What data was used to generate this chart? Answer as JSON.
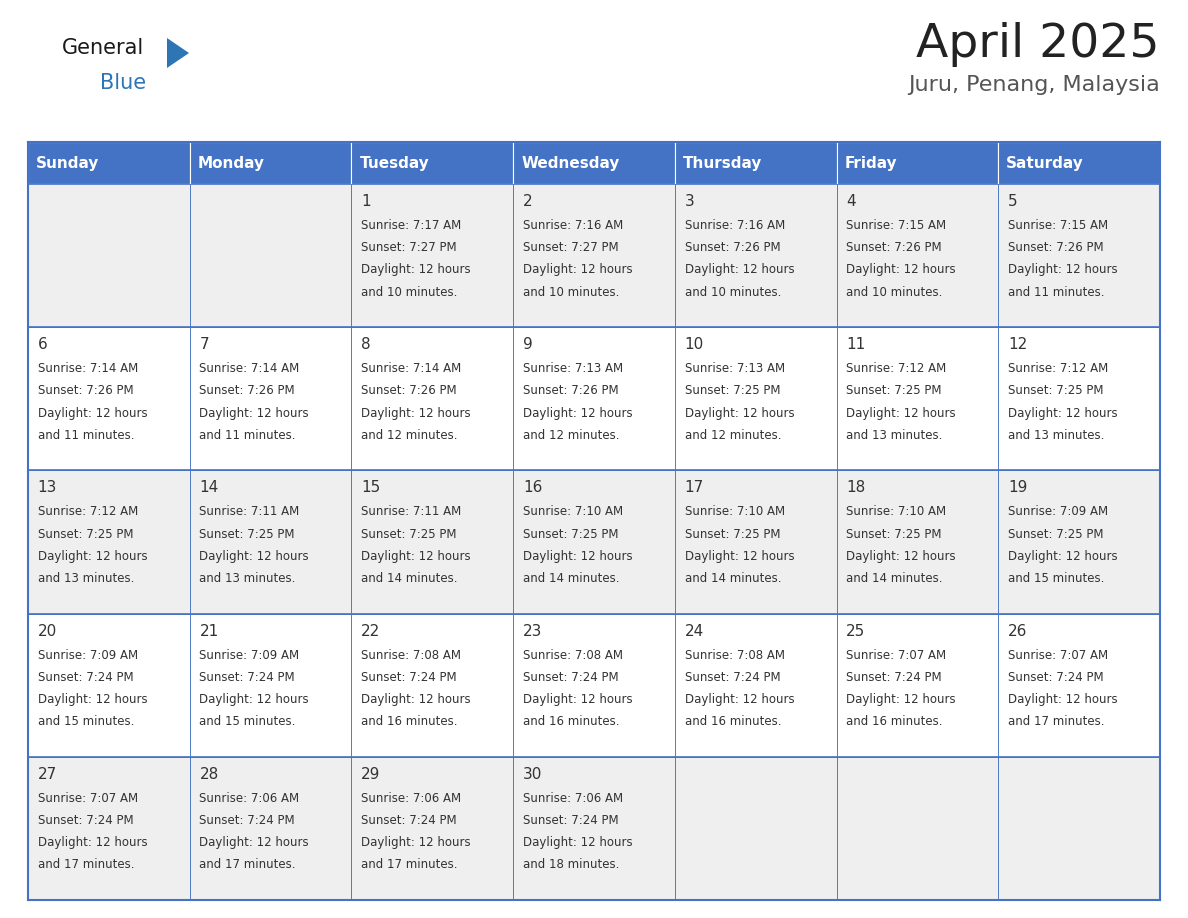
{
  "title": "April 2025",
  "subtitle": "Juru, Penang, Malaysia",
  "header_bg": "#4472C4",
  "header_text_color": "#FFFFFF",
  "days_of_week": [
    "Sunday",
    "Monday",
    "Tuesday",
    "Wednesday",
    "Thursday",
    "Friday",
    "Saturday"
  ],
  "row_bg_even": "#EFEFEF",
  "row_bg_odd": "#FFFFFF",
  "cell_border_color": "#4472C4",
  "text_color": "#333333",
  "logo_general_color": "#1a1a1a",
  "logo_blue_color": "#2E75B6",
  "logo_triangle_color": "#2E75B6",
  "calendar": [
    [
      {
        "day": "",
        "sunrise": "",
        "sunset": "",
        "daylight": ""
      },
      {
        "day": "",
        "sunrise": "",
        "sunset": "",
        "daylight": ""
      },
      {
        "day": "1",
        "sunrise": "7:17 AM",
        "sunset": "7:27 PM",
        "daylight": "12 hours and 10 minutes."
      },
      {
        "day": "2",
        "sunrise": "7:16 AM",
        "sunset": "7:27 PM",
        "daylight": "12 hours and 10 minutes."
      },
      {
        "day": "3",
        "sunrise": "7:16 AM",
        "sunset": "7:26 PM",
        "daylight": "12 hours and 10 minutes."
      },
      {
        "day": "4",
        "sunrise": "7:15 AM",
        "sunset": "7:26 PM",
        "daylight": "12 hours and 10 minutes."
      },
      {
        "day": "5",
        "sunrise": "7:15 AM",
        "sunset": "7:26 PM",
        "daylight": "12 hours and 11 minutes."
      }
    ],
    [
      {
        "day": "6",
        "sunrise": "7:14 AM",
        "sunset": "7:26 PM",
        "daylight": "12 hours and 11 minutes."
      },
      {
        "day": "7",
        "sunrise": "7:14 AM",
        "sunset": "7:26 PM",
        "daylight": "12 hours and 11 minutes."
      },
      {
        "day": "8",
        "sunrise": "7:14 AM",
        "sunset": "7:26 PM",
        "daylight": "12 hours and 12 minutes."
      },
      {
        "day": "9",
        "sunrise": "7:13 AM",
        "sunset": "7:26 PM",
        "daylight": "12 hours and 12 minutes."
      },
      {
        "day": "10",
        "sunrise": "7:13 AM",
        "sunset": "7:25 PM",
        "daylight": "12 hours and 12 minutes."
      },
      {
        "day": "11",
        "sunrise": "7:12 AM",
        "sunset": "7:25 PM",
        "daylight": "12 hours and 13 minutes."
      },
      {
        "day": "12",
        "sunrise": "7:12 AM",
        "sunset": "7:25 PM",
        "daylight": "12 hours and 13 minutes."
      }
    ],
    [
      {
        "day": "13",
        "sunrise": "7:12 AM",
        "sunset": "7:25 PM",
        "daylight": "12 hours and 13 minutes."
      },
      {
        "day": "14",
        "sunrise": "7:11 AM",
        "sunset": "7:25 PM",
        "daylight": "12 hours and 13 minutes."
      },
      {
        "day": "15",
        "sunrise": "7:11 AM",
        "sunset": "7:25 PM",
        "daylight": "12 hours and 14 minutes."
      },
      {
        "day": "16",
        "sunrise": "7:10 AM",
        "sunset": "7:25 PM",
        "daylight": "12 hours and 14 minutes."
      },
      {
        "day": "17",
        "sunrise": "7:10 AM",
        "sunset": "7:25 PM",
        "daylight": "12 hours and 14 minutes."
      },
      {
        "day": "18",
        "sunrise": "7:10 AM",
        "sunset": "7:25 PM",
        "daylight": "12 hours and 14 minutes."
      },
      {
        "day": "19",
        "sunrise": "7:09 AM",
        "sunset": "7:25 PM",
        "daylight": "12 hours and 15 minutes."
      }
    ],
    [
      {
        "day": "20",
        "sunrise": "7:09 AM",
        "sunset": "7:24 PM",
        "daylight": "12 hours and 15 minutes."
      },
      {
        "day": "21",
        "sunrise": "7:09 AM",
        "sunset": "7:24 PM",
        "daylight": "12 hours and 15 minutes."
      },
      {
        "day": "22",
        "sunrise": "7:08 AM",
        "sunset": "7:24 PM",
        "daylight": "12 hours and 16 minutes."
      },
      {
        "day": "23",
        "sunrise": "7:08 AM",
        "sunset": "7:24 PM",
        "daylight": "12 hours and 16 minutes."
      },
      {
        "day": "24",
        "sunrise": "7:08 AM",
        "sunset": "7:24 PM",
        "daylight": "12 hours and 16 minutes."
      },
      {
        "day": "25",
        "sunrise": "7:07 AM",
        "sunset": "7:24 PM",
        "daylight": "12 hours and 16 minutes."
      },
      {
        "day": "26",
        "sunrise": "7:07 AM",
        "sunset": "7:24 PM",
        "daylight": "12 hours and 17 minutes."
      }
    ],
    [
      {
        "day": "27",
        "sunrise": "7:07 AM",
        "sunset": "7:24 PM",
        "daylight": "12 hours and 17 minutes."
      },
      {
        "day": "28",
        "sunrise": "7:06 AM",
        "sunset": "7:24 PM",
        "daylight": "12 hours and 17 minutes."
      },
      {
        "day": "29",
        "sunrise": "7:06 AM",
        "sunset": "7:24 PM",
        "daylight": "12 hours and 17 minutes."
      },
      {
        "day": "30",
        "sunrise": "7:06 AM",
        "sunset": "7:24 PM",
        "daylight": "12 hours and 18 minutes."
      },
      {
        "day": "",
        "sunrise": "",
        "sunset": "",
        "daylight": ""
      },
      {
        "day": "",
        "sunrise": "",
        "sunset": "",
        "daylight": ""
      },
      {
        "day": "",
        "sunrise": "",
        "sunset": "",
        "daylight": ""
      }
    ]
  ]
}
